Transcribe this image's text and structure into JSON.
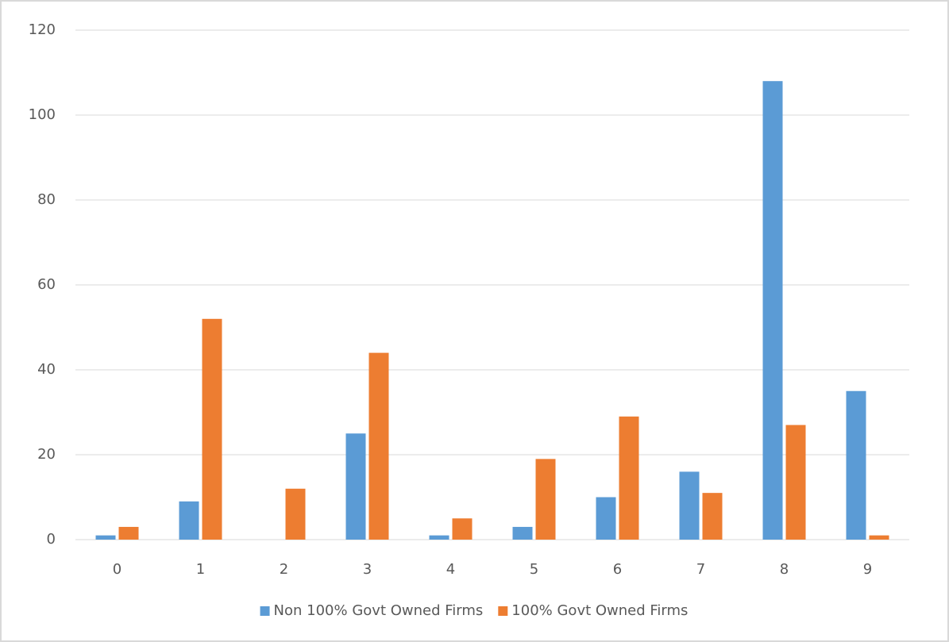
{
  "chart_data": {
    "type": "bar",
    "categories": [
      "0",
      "1",
      "2",
      "3",
      "4",
      "5",
      "6",
      "7",
      "8",
      "9"
    ],
    "series": [
      {
        "name": "Non 100% Govt Owned Firms",
        "color": "#5b9bd5",
        "values": [
          1,
          9,
          0,
          25,
          1,
          3,
          10,
          16,
          108,
          35
        ]
      },
      {
        "name": "100% Govt Owned Firms",
        "color": "#ed7d31",
        "values": [
          3,
          52,
          12,
          44,
          5,
          19,
          29,
          11,
          27,
          1
        ]
      }
    ],
    "ylim": [
      0,
      120
    ],
    "yticks": [
      0,
      20,
      40,
      60,
      80,
      100,
      120
    ],
    "grid": true,
    "legend": "bottom"
  }
}
